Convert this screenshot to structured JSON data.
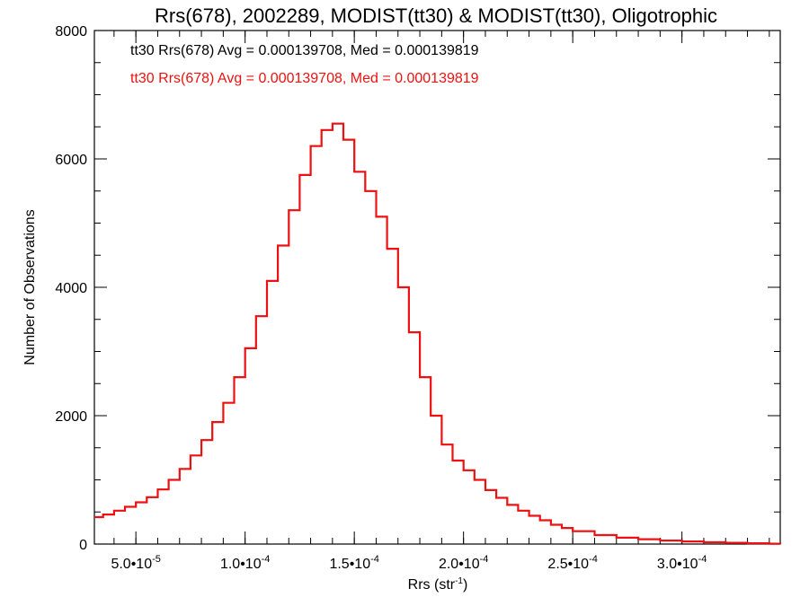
{
  "chart_data": {
    "type": "histogram-step",
    "title": "Rrs(678), 2002289, MODIST(tt30) & MODIST(tt30), Oligotrophic",
    "xlabel": "Rrs (str",
    "xlabel_sup": "-1",
    "xlabel_end": ")",
    "ylabel": "Number of Observations",
    "xlim": [
      3.1e-05,
      0.000345
    ],
    "ylim": [
      0,
      8000
    ],
    "x_ticks": [
      {
        "value": 5e-05,
        "mant": "5.0",
        "exp": "-5"
      },
      {
        "value": 0.0001,
        "mant": "1.0",
        "exp": "-4"
      },
      {
        "value": 0.00015,
        "mant": "1.5",
        "exp": "-4"
      },
      {
        "value": 0.0002,
        "mant": "2.0",
        "exp": "-4"
      },
      {
        "value": 0.00025,
        "mant": "2.5",
        "exp": "-4"
      },
      {
        "value": 0.0003,
        "mant": "3.0",
        "exp": "-4"
      }
    ],
    "y_ticks": [
      0,
      2000,
      4000,
      6000,
      8000
    ],
    "annotations": [
      {
        "text": "tt30 Rrs(678) Avg = 0.000139708, Med = 0.000139819",
        "color": "#000000"
      },
      {
        "text": "tt30 Rrs(678) Avg = 0.000139708, Med = 0.000139819",
        "color": "#ee1111"
      }
    ],
    "series": [
      {
        "color": "#000000",
        "x": [
          3.1e-05,
          3.5e-05,
          4e-05,
          4.5e-05,
          5e-05,
          5.5e-05,
          6e-05,
          6.5e-05,
          7e-05,
          7.5e-05,
          8e-05,
          8.5e-05,
          9e-05,
          9.5e-05,
          0.0001,
          0.000105,
          0.00011,
          0.000115,
          0.00012,
          0.000125,
          0.00013,
          0.000135,
          0.00014,
          0.000145,
          0.00015,
          0.000155,
          0.00016,
          0.000165,
          0.00017,
          0.000175,
          0.00018,
          0.000185,
          0.00019,
          0.000195,
          0.0002,
          0.000205,
          0.00021,
          0.000215,
          0.00022,
          0.000225,
          0.00023,
          0.000235,
          0.00024,
          0.000245,
          0.00025,
          0.00026,
          0.00027,
          0.00028,
          0.00029,
          0.0003,
          0.00031,
          0.00032,
          0.00033,
          0.00034,
          0.000345
        ],
        "y": [
          420,
          460,
          520,
          580,
          650,
          730,
          850,
          1000,
          1170,
          1380,
          1620,
          1900,
          2200,
          2600,
          3050,
          3550,
          4100,
          4650,
          5200,
          5750,
          6200,
          6450,
          6550,
          6300,
          5800,
          5500,
          5100,
          4600,
          4000,
          3300,
          2600,
          2000,
          1550,
          1300,
          1150,
          1000,
          840,
          720,
          610,
          520,
          440,
          370,
          300,
          250,
          200,
          140,
          100,
          75,
          55,
          40,
          28,
          20,
          12,
          6,
          4
        ]
      },
      {
        "color": "#ee1111",
        "x": [
          3.1e-05,
          3.5e-05,
          4e-05,
          4.5e-05,
          5e-05,
          5.5e-05,
          6e-05,
          6.5e-05,
          7e-05,
          7.5e-05,
          8e-05,
          8.5e-05,
          9e-05,
          9.5e-05,
          0.0001,
          0.000105,
          0.00011,
          0.000115,
          0.00012,
          0.000125,
          0.00013,
          0.000135,
          0.00014,
          0.000145,
          0.00015,
          0.000155,
          0.00016,
          0.000165,
          0.00017,
          0.000175,
          0.00018,
          0.000185,
          0.00019,
          0.000195,
          0.0002,
          0.000205,
          0.00021,
          0.000215,
          0.00022,
          0.000225,
          0.00023,
          0.000235,
          0.00024,
          0.000245,
          0.00025,
          0.00026,
          0.00027,
          0.00028,
          0.00029,
          0.0003,
          0.00031,
          0.00032,
          0.00033,
          0.00034,
          0.000345
        ],
        "y": [
          420,
          460,
          520,
          580,
          650,
          730,
          850,
          1000,
          1170,
          1380,
          1620,
          1900,
          2200,
          2600,
          3050,
          3550,
          4100,
          4650,
          5200,
          5750,
          6200,
          6450,
          6550,
          6300,
          5800,
          5500,
          5100,
          4600,
          4000,
          3300,
          2600,
          2000,
          1550,
          1300,
          1150,
          1000,
          840,
          720,
          610,
          520,
          440,
          370,
          300,
          250,
          200,
          140,
          100,
          75,
          55,
          40,
          28,
          20,
          12,
          6,
          4
        ]
      }
    ]
  }
}
